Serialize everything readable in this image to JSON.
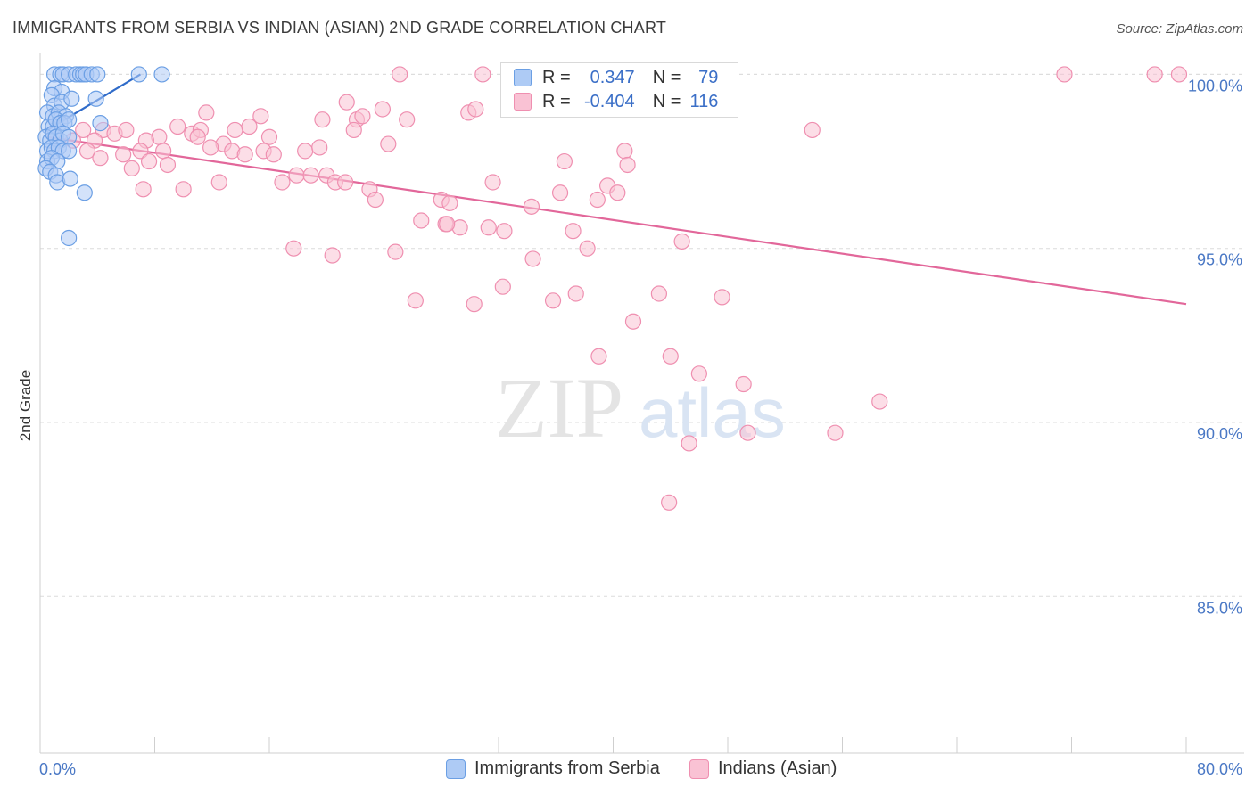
{
  "chart_data": {
    "type": "scatter",
    "title": "IMMIGRANTS FROM SERBIA VS INDIAN (ASIAN) 2ND GRADE CORRELATION CHART",
    "source": "Source: ZipAtlas.com",
    "xlabel": "",
    "ylabel": "2nd Grade",
    "xlim": [
      0,
      80
    ],
    "ylim": [
      80.5,
      100.6
    ],
    "x_tick_labels": [
      "0.0%",
      "80.0%"
    ],
    "y_ticks": [
      {
        "value": 100,
        "label": "100.0%"
      },
      {
        "value": 95,
        "label": "95.0%"
      },
      {
        "value": 90,
        "label": "90.0%"
      },
      {
        "value": 85,
        "label": "85.0%"
      }
    ],
    "grid": true,
    "watermark": "ZIPatlas",
    "legend": {
      "rows": [
        {
          "r_label": "R =",
          "r_value": "0.347",
          "n_label": "N =",
          "n_value": "79"
        },
        {
          "r_label": "R =",
          "r_value": "-0.404",
          "n_label": "N =",
          "n_value": "116"
        }
      ]
    },
    "series": [
      {
        "name": "Immigrants from Serbia",
        "color": "#6b9fe4",
        "fill": "#aecbf5",
        "trend": {
          "x": [
            0.5,
            7.0
          ],
          "y": [
            98.4,
            100.0
          ]
        },
        "points": [
          [
            1.0,
            100
          ],
          [
            1.4,
            100
          ],
          [
            1.6,
            100
          ],
          [
            2.0,
            100
          ],
          [
            2.5,
            100
          ],
          [
            2.8,
            100
          ],
          [
            3.0,
            100
          ],
          [
            3.2,
            100
          ],
          [
            3.6,
            100
          ],
          [
            4.0,
            100
          ],
          [
            6.9,
            100
          ],
          [
            8.5,
            100
          ],
          [
            1.0,
            99.6
          ],
          [
            1.5,
            99.5
          ],
          [
            0.8,
            99.4
          ],
          [
            1.0,
            99.1
          ],
          [
            1.5,
            99.2
          ],
          [
            2.2,
            99.3
          ],
          [
            3.9,
            99.3
          ],
          [
            0.5,
            98.9
          ],
          [
            0.9,
            98.8
          ],
          [
            1.3,
            98.9
          ],
          [
            1.8,
            98.8
          ],
          [
            0.6,
            98.5
          ],
          [
            0.9,
            98.5
          ],
          [
            1.1,
            98.7
          ],
          [
            1.4,
            98.6
          ],
          [
            1.7,
            98.6
          ],
          [
            2.0,
            98.7
          ],
          [
            4.2,
            98.6
          ],
          [
            0.4,
            98.2
          ],
          [
            0.7,
            98.1
          ],
          [
            0.9,
            98.3
          ],
          [
            1.1,
            98.2
          ],
          [
            1.4,
            98.1
          ],
          [
            1.6,
            98.3
          ],
          [
            2.0,
            98.2
          ],
          [
            0.5,
            97.8
          ],
          [
            0.8,
            97.9
          ],
          [
            1.0,
            97.8
          ],
          [
            1.3,
            97.9
          ],
          [
            1.6,
            97.8
          ],
          [
            2.0,
            97.8
          ],
          [
            0.5,
            97.5
          ],
          [
            0.8,
            97.6
          ],
          [
            1.2,
            97.5
          ],
          [
            0.4,
            97.3
          ],
          [
            0.7,
            97.2
          ],
          [
            1.1,
            97.1
          ],
          [
            1.2,
            96.9
          ],
          [
            2.1,
            97.0
          ],
          [
            3.1,
            96.6
          ],
          [
            2.0,
            95.3
          ]
        ]
      },
      {
        "name": "Indians (Asian)",
        "color": "#ef8fb0",
        "fill": "#f9c2d4",
        "trend": {
          "x": [
            0.5,
            80.0
          ],
          "y": [
            98.2,
            93.4
          ]
        },
        "points": [
          [
            25.1,
            100
          ],
          [
            30.9,
            100
          ],
          [
            47.4,
            100
          ],
          [
            71.5,
            100
          ],
          [
            77.8,
            100
          ],
          [
            79.5,
            100
          ],
          [
            21.4,
            99.2
          ],
          [
            23.9,
            99.0
          ],
          [
            29.9,
            98.9
          ],
          [
            30.4,
            99.0
          ],
          [
            11.6,
            98.9
          ],
          [
            15.4,
            98.8
          ],
          [
            19.7,
            98.7
          ],
          [
            22.1,
            98.7
          ],
          [
            22.5,
            98.8
          ],
          [
            25.6,
            98.7
          ],
          [
            3.0,
            98.4
          ],
          [
            4.4,
            98.4
          ],
          [
            5.2,
            98.3
          ],
          [
            6.0,
            98.4
          ],
          [
            8.3,
            98.2
          ],
          [
            9.6,
            98.5
          ],
          [
            10.6,
            98.3
          ],
          [
            11.2,
            98.4
          ],
          [
            13.6,
            98.4
          ],
          [
            14.6,
            98.5
          ],
          [
            16.0,
            98.2
          ],
          [
            21.9,
            98.4
          ],
          [
            53.9,
            98.4
          ],
          [
            2.3,
            98.1
          ],
          [
            3.8,
            98.1
          ],
          [
            7.4,
            98.1
          ],
          [
            11.0,
            98.2
          ],
          [
            12.8,
            98.0
          ],
          [
            3.3,
            97.8
          ],
          [
            5.8,
            97.7
          ],
          [
            7.0,
            97.8
          ],
          [
            8.6,
            97.8
          ],
          [
            11.9,
            97.9
          ],
          [
            13.4,
            97.8
          ],
          [
            14.3,
            97.7
          ],
          [
            15.6,
            97.8
          ],
          [
            16.3,
            97.7
          ],
          [
            18.5,
            97.8
          ],
          [
            19.5,
            97.9
          ],
          [
            24.3,
            98.0
          ],
          [
            40.8,
            97.8
          ],
          [
            4.2,
            97.6
          ],
          [
            7.6,
            97.5
          ],
          [
            8.9,
            97.4
          ],
          [
            6.4,
            97.3
          ],
          [
            17.9,
            97.1
          ],
          [
            18.9,
            97.1
          ],
          [
            20.0,
            97.1
          ],
          [
            20.6,
            96.9
          ],
          [
            21.3,
            96.9
          ],
          [
            16.9,
            96.9
          ],
          [
            36.6,
            97.5
          ],
          [
            41.0,
            97.4
          ],
          [
            31.6,
            96.9
          ],
          [
            7.2,
            96.7
          ],
          [
            10.0,
            96.7
          ],
          [
            12.5,
            96.9
          ],
          [
            23.0,
            96.7
          ],
          [
            28.0,
            96.4
          ],
          [
            28.6,
            96.3
          ],
          [
            36.3,
            96.6
          ],
          [
            38.9,
            96.4
          ],
          [
            39.6,
            96.8
          ],
          [
            40.3,
            96.6
          ],
          [
            34.3,
            96.2
          ],
          [
            23.4,
            96.4
          ],
          [
            26.6,
            95.8
          ],
          [
            28.3,
            95.7
          ],
          [
            29.3,
            95.6
          ],
          [
            28.4,
            95.7
          ],
          [
            31.3,
            95.6
          ],
          [
            32.4,
            95.5
          ],
          [
            34.4,
            94.7
          ],
          [
            37.2,
            95.5
          ],
          [
            38.2,
            95.0
          ],
          [
            44.8,
            95.2
          ],
          [
            17.7,
            95.0
          ],
          [
            20.4,
            94.8
          ],
          [
            24.8,
            94.9
          ],
          [
            26.2,
            93.5
          ],
          [
            30.3,
            93.4
          ],
          [
            32.3,
            93.9
          ],
          [
            35.8,
            93.5
          ],
          [
            37.4,
            93.7
          ],
          [
            43.2,
            93.7
          ],
          [
            47.6,
            93.6
          ],
          [
            41.4,
            92.9
          ],
          [
            39.0,
            91.9
          ],
          [
            44.0,
            91.9
          ],
          [
            46.0,
            91.4
          ],
          [
            49.1,
            91.1
          ],
          [
            58.6,
            90.6
          ],
          [
            49.4,
            89.7
          ],
          [
            55.5,
            89.7
          ],
          [
            45.3,
            89.4
          ],
          [
            43.9,
            87.7
          ]
        ]
      }
    ]
  },
  "page": {
    "title": "IMMIGRANTS FROM SERBIA VS INDIAN (ASIAN) 2ND GRADE CORRELATION CHART",
    "source": "Source: ZipAtlas.com"
  }
}
